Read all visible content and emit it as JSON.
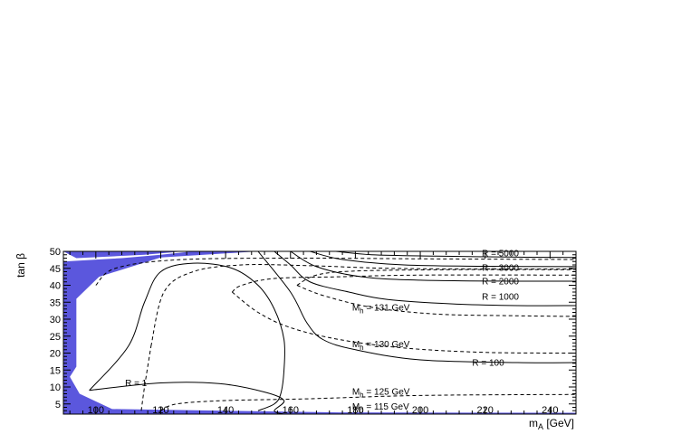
{
  "chart_data": {
    "type": "line",
    "title": "",
    "xlabel": "m_A [GeV]",
    "ylabel": "tan β",
    "xlim": [
      90,
      248
    ],
    "ylim": [
      2,
      50
    ],
    "xticks": [
      100,
      120,
      140,
      160,
      180,
      200,
      220,
      240
    ],
    "yticks": [
      5,
      10,
      15,
      20,
      25,
      30,
      35,
      40,
      45,
      50
    ],
    "grid": false,
    "colors": {
      "excluded_region": "#5b57dd",
      "frame": "#000000"
    },
    "excluded_region": {
      "polygons": [
        [
          [
            90,
            2
          ],
          [
            90,
            50
          ],
          [
            94,
            48
          ],
          [
            115,
            49
          ],
          [
            127,
            50
          ],
          [
            90,
            50
          ]
        ],
        [
          [
            90,
            2
          ],
          [
            90,
            47
          ],
          [
            108,
            48
          ],
          [
            120,
            49
          ],
          [
            130,
            50
          ],
          [
            150,
            50
          ],
          [
            120,
            48.2
          ],
          [
            101,
            42.5
          ],
          [
            94,
            36
          ],
          [
            94,
            16
          ],
          [
            92,
            13
          ],
          [
            95,
            8
          ],
          [
            105,
            3.5
          ],
          [
            175,
            2.5
          ],
          [
            248,
            2.4
          ],
          [
            248,
            2
          ]
        ]
      ]
    },
    "solid_contours": [
      {
        "label": "R = 5000",
        "points": [
          [
            174,
            50
          ],
          [
            185,
            49
          ],
          [
            205,
            48.6
          ],
          [
            230,
            48.3
          ],
          [
            248,
            48.2
          ]
        ]
      },
      {
        "label": "R = 3000",
        "points": [
          [
            166,
            50
          ],
          [
            176,
            47.6
          ],
          [
            195,
            46
          ],
          [
            220,
            45.6
          ],
          [
            248,
            45.5
          ]
        ]
      },
      {
        "label": "R = 2000",
        "points": [
          [
            160,
            50
          ],
          [
            168,
            45.5
          ],
          [
            182,
            42.5
          ],
          [
            200,
            41.5
          ],
          [
            230,
            41.2
          ],
          [
            248,
            41.2
          ]
        ]
      },
      {
        "label": "R = 1000",
        "points": [
          [
            155,
            50
          ],
          [
            160,
            46
          ],
          [
            166,
            41
          ],
          [
            178,
            38
          ],
          [
            190,
            35.8
          ],
          [
            210,
            34.5
          ],
          [
            230,
            34
          ],
          [
            248,
            34
          ]
        ]
      },
      {
        "label": "R = 100",
        "points": [
          [
            150,
            50
          ],
          [
            160,
            38
          ],
          [
            165,
            29
          ],
          [
            170,
            24
          ],
          [
            180,
            21
          ],
          [
            200,
            18
          ],
          [
            230,
            17.2
          ],
          [
            248,
            17.2
          ]
        ]
      },
      {
        "label": "R = 1",
        "points": [
          [
            98,
            9
          ],
          [
            120,
            11.2
          ],
          [
            138,
            11
          ],
          [
            152,
            8.5
          ],
          [
            158,
            6
          ],
          [
            155,
            3
          ],
          [
            158,
            2
          ]
        ]
      },
      {
        "label": "",
        "points": [
          [
            98,
            9
          ],
          [
            110,
            22
          ],
          [
            115,
            35
          ],
          [
            120,
            44
          ],
          [
            130,
            46.5
          ],
          [
            142,
            45
          ],
          [
            150,
            40
          ],
          [
            155,
            33
          ],
          [
            158,
            24
          ],
          [
            158,
            15
          ],
          [
            157,
            8
          ],
          [
            155,
            5
          ],
          [
            150,
            3
          ]
        ]
      }
    ],
    "dashed_contours": [
      {
        "label": "M_h = 131 GeV",
        "points": [
          [
            162,
            40
          ],
          [
            170,
            37
          ],
          [
            185,
            33.5
          ],
          [
            205,
            31.5
          ],
          [
            230,
            31
          ],
          [
            248,
            30.8
          ]
        ]
      },
      {
        "label": "M_h = 130 GeV",
        "points": [
          [
            142,
            38
          ],
          [
            150,
            32
          ],
          [
            160,
            27.5
          ],
          [
            175,
            24
          ],
          [
            195,
            21.5
          ],
          [
            220,
            20.2
          ],
          [
            248,
            20
          ]
        ]
      },
      {
        "label": "M_h = 125 GeV",
        "points": [
          [
            117,
            22
          ],
          [
            121,
            38
          ],
          [
            130,
            44
          ],
          [
            145,
            46
          ],
          [
            165,
            45.8
          ],
          [
            190,
            45
          ],
          [
            220,
            44.8
          ],
          [
            248,
            44.8
          ]
        ]
      },
      {
        "label": "M_h = 115 GeV",
        "points": [
          [
            100,
            40
          ],
          [
            106,
            45
          ],
          [
            125,
            47.5
          ],
          [
            160,
            48
          ],
          [
            200,
            47.8
          ],
          [
            248,
            47.6
          ]
        ]
      },
      {
        "label": "",
        "points": [
          [
            114,
            3
          ],
          [
            115,
            10
          ],
          [
            117,
            22
          ]
        ]
      },
      {
        "label": "",
        "points": [
          [
            120,
            3
          ],
          [
            125,
            5
          ],
          [
            140,
            6
          ],
          [
            165,
            6.5
          ],
          [
            200,
            7.5
          ],
          [
            248,
            7.8
          ]
        ]
      },
      {
        "label": "",
        "points": [
          [
            142,
            38
          ],
          [
            145,
            40
          ],
          [
            155,
            42
          ],
          [
            175,
            42.5
          ],
          [
            200,
            43
          ],
          [
            248,
            43
          ]
        ]
      },
      {
        "label": "",
        "points": [
          [
            162,
            40
          ],
          [
            168,
            43
          ],
          [
            180,
            44.2
          ],
          [
            210,
            44.6
          ],
          [
            248,
            44.6
          ]
        ]
      }
    ],
    "annotations": [
      {
        "text": "R = 5000",
        "x": 219,
        "y": 48.5
      },
      {
        "text": "R = 3000",
        "x": 219,
        "y": 44.3
      },
      {
        "text": "R = 2000",
        "x": 219,
        "y": 40.3
      },
      {
        "text": "R = 1000",
        "x": 219,
        "y": 35.7
      },
      {
        "text": "R = 100",
        "x": 216,
        "y": 16.3
      },
      {
        "text": "R = 1",
        "x": 109,
        "y": 10.3
      },
      {
        "text": "M",
        "sub": "h",
        "rest": " = 131 GeV",
        "x": 179,
        "y": 32.6
      },
      {
        "text": "M",
        "sub": "h",
        "rest": " = 130 GeV",
        "x": 179,
        "y": 21.8
      },
      {
        "text": "M",
        "sub": "h",
        "rest": " = 125 GeV",
        "x": 179,
        "y": 7.8
      },
      {
        "text": "M",
        "sub": "h",
        "rest": " = 115 GeV",
        "x": 179,
        "y": 3.3
      }
    ]
  }
}
